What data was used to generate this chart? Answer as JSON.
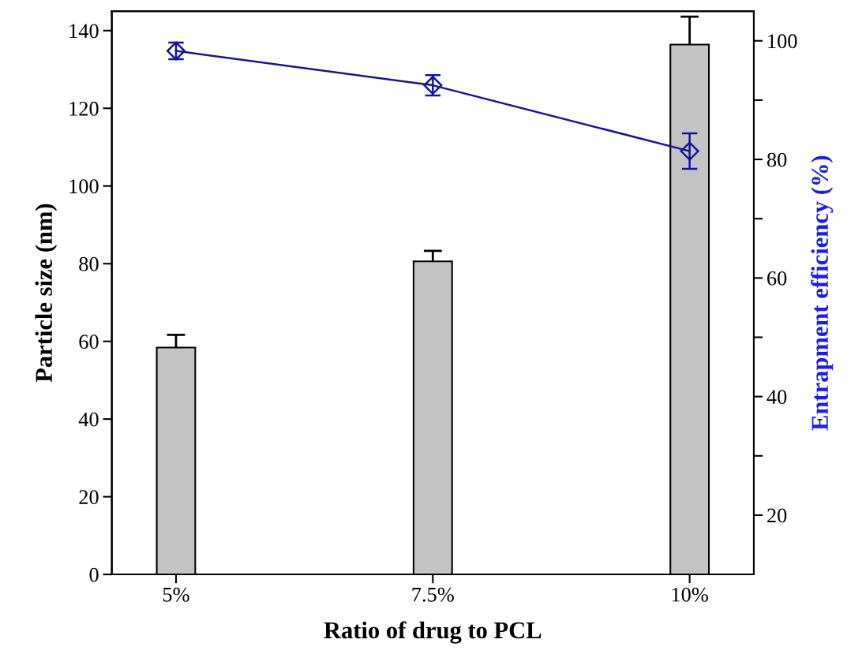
{
  "chart_data": {
    "type": "bar",
    "xlabel": "Ratio of drug to PCL",
    "ylabel": "Particle size (nm)",
    "y2label": "Entrapment efficiency (%)",
    "categories": [
      "5%",
      "7.5%",
      "10%"
    ],
    "series": [
      {
        "color": "#c4c4c4",
        "values": [
          58.4,
          80.6,
          136.4
        ],
        "errors": [
          [
            58.4,
            61.7
          ],
          [
            80.6,
            83.3
          ],
          [
            136.4,
            143.6
          ]
        ]
      },
      {
        "type": "line",
        "axis": "y2",
        "color": "#1414a0",
        "values": [
          98.3,
          92.5,
          81.4
        ],
        "errors": [
          1.4,
          1.7,
          3.0
        ],
        "marker": "diamond",
        "line_style": "solid"
      }
    ],
    "ylim": [
      0,
      145
    ],
    "yticks": [
      0,
      20,
      40,
      60,
      80,
      100,
      120,
      140
    ],
    "y2lim": [
      10,
      105
    ],
    "y2ticks": [
      {
        "value": 20,
        "label": "20"
      },
      {
        "value": 30,
        "label": null
      },
      {
        "value": 40,
        "label": "40"
      },
      {
        "value": 50,
        "label": null
      },
      {
        "value": 60,
        "label": "60"
      },
      {
        "value": 70,
        "label": null
      },
      {
        "value": 80,
        "label": "80"
      },
      {
        "value": 90,
        "label": null
      },
      {
        "value": 100,
        "label": "100"
      }
    ],
    "grid": false,
    "legend": false
  }
}
